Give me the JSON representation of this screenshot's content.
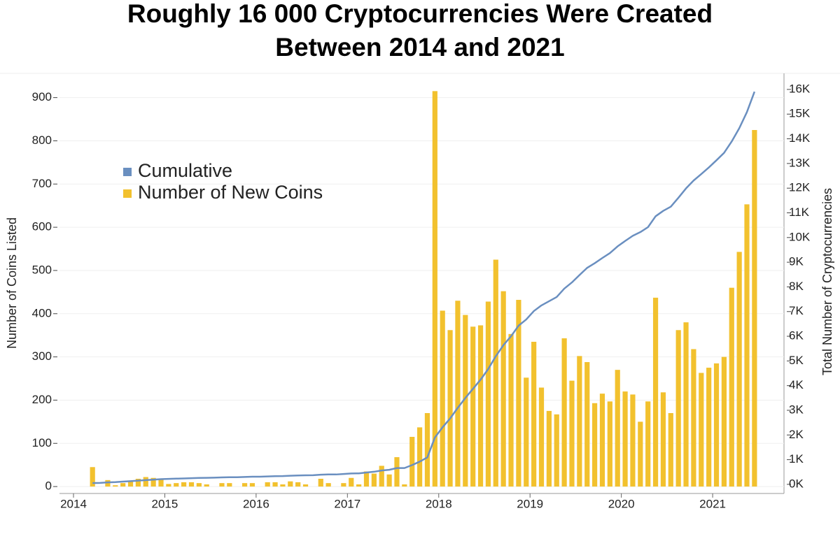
{
  "chart_data": {
    "type": "bar",
    "title": [
      "Roughly 16 000 Cryptocurrencies Were Created",
      "Between 2014 and 2021"
    ],
    "y_label": "Number of Coins Listed",
    "y2_label": "Total Number of Cryptocurrencies",
    "categories": [
      "2014",
      null,
      null,
      null,
      null,
      null,
      null,
      null,
      null,
      null,
      null,
      null,
      "2015",
      null,
      null,
      null,
      null,
      null,
      null,
      null,
      null,
      null,
      null,
      null,
      "2016",
      null,
      null,
      null,
      null,
      null,
      null,
      null,
      null,
      null,
      null,
      null,
      "2017",
      null,
      null,
      null,
      null,
      null,
      null,
      null,
      null,
      null,
      null,
      null,
      "2018",
      null,
      null,
      null,
      null,
      null,
      null,
      null,
      null,
      null,
      null,
      null,
      "2019",
      null,
      null,
      null,
      null,
      null,
      null,
      null,
      null,
      null,
      null,
      null,
      "2020",
      null,
      null,
      null,
      null,
      null,
      null,
      null,
      null,
      null,
      null,
      null,
      "2021",
      null,
      null,
      null,
      null,
      null
    ],
    "series": [
      {
        "name": "Cumulative",
        "type": "line",
        "axis": "y2",
        "color": "#6a8fc0",
        "values": [
          null,
          null,
          50,
          60,
          80,
          90,
          110,
          130,
          150,
          170,
          190,
          210,
          220,
          230,
          240,
          250,
          260,
          265,
          270,
          280,
          290,
          290,
          300,
          310,
          310,
          320,
          330,
          335,
          350,
          360,
          365,
          370,
          390,
          400,
          400,
          420,
          440,
          445,
          480,
          510,
          560,
          590,
          660,
          660,
          780,
          920,
          1090,
          1900,
          2310,
          2670,
          3100,
          3500,
          3870,
          4240,
          4670,
          5190,
          5640,
          6000,
          6430,
          6680,
          7020,
          7250,
          7420,
          7590,
          7930,
          8180,
          8480,
          8770,
          8960,
          9170,
          9370,
          9640,
          9860,
          10070,
          10220,
          10420,
          10860,
          11080,
          11250,
          11610,
          11990,
          12310,
          12570,
          12840,
          13130,
          13430,
          13890,
          14430,
          15080,
          15910
        ]
      },
      {
        "name": "Number of New Coins",
        "type": "bar",
        "color": "#f2c12e",
        "values": [
          null,
          null,
          45,
          0,
          15,
          3,
          8,
          12,
          18,
          22,
          20,
          17,
          6,
          8,
          10,
          10,
          8,
          5,
          0,
          8,
          8,
          0,
          8,
          8,
          0,
          10,
          10,
          5,
          12,
          10,
          5,
          0,
          18,
          8,
          0,
          8,
          20,
          5,
          35,
          30,
          48,
          28,
          68,
          5,
          115,
          137,
          170,
          915,
          407,
          362,
          430,
          397,
          370,
          373,
          428,
          525,
          452,
          353,
          432,
          252,
          335,
          229,
          175,
          167,
          343,
          245,
          302,
          288,
          193,
          215,
          197,
          270,
          220,
          213,
          150,
          197,
          437,
          218,
          170,
          362,
          380,
          318,
          263,
          275,
          285,
          300,
          460,
          543,
          653,
          825
        ]
      }
    ],
    "ylim": [
      -16,
      956
    ],
    "yticks": [
      0,
      100,
      200,
      300,
      400,
      500,
      600,
      700,
      800,
      900
    ],
    "y2lim": [
      -370,
      16650
    ],
    "y2ticks": [
      {
        "value": 0,
        "label": "0K"
      },
      {
        "value": 1000,
        "label": "1K"
      },
      {
        "value": 2000,
        "label": "2K"
      },
      {
        "value": 3000,
        "label": "3K"
      },
      {
        "value": 4000,
        "label": "4K"
      },
      {
        "value": 5000,
        "label": "5K"
      },
      {
        "value": 6000,
        "label": "6K"
      },
      {
        "value": 7000,
        "label": "7K"
      },
      {
        "value": 8000,
        "label": "8K"
      },
      {
        "value": 9000,
        "label": "9K"
      },
      {
        "value": 10000,
        "label": "10K"
      },
      {
        "value": 11000,
        "label": "11K"
      },
      {
        "value": 12000,
        "label": "12K"
      },
      {
        "value": 13000,
        "label": "13K"
      },
      {
        "value": 14000,
        "label": "14K"
      },
      {
        "value": 15000,
        "label": "15K"
      },
      {
        "value": 16000,
        "label": "16K"
      }
    ],
    "grid": true
  }
}
